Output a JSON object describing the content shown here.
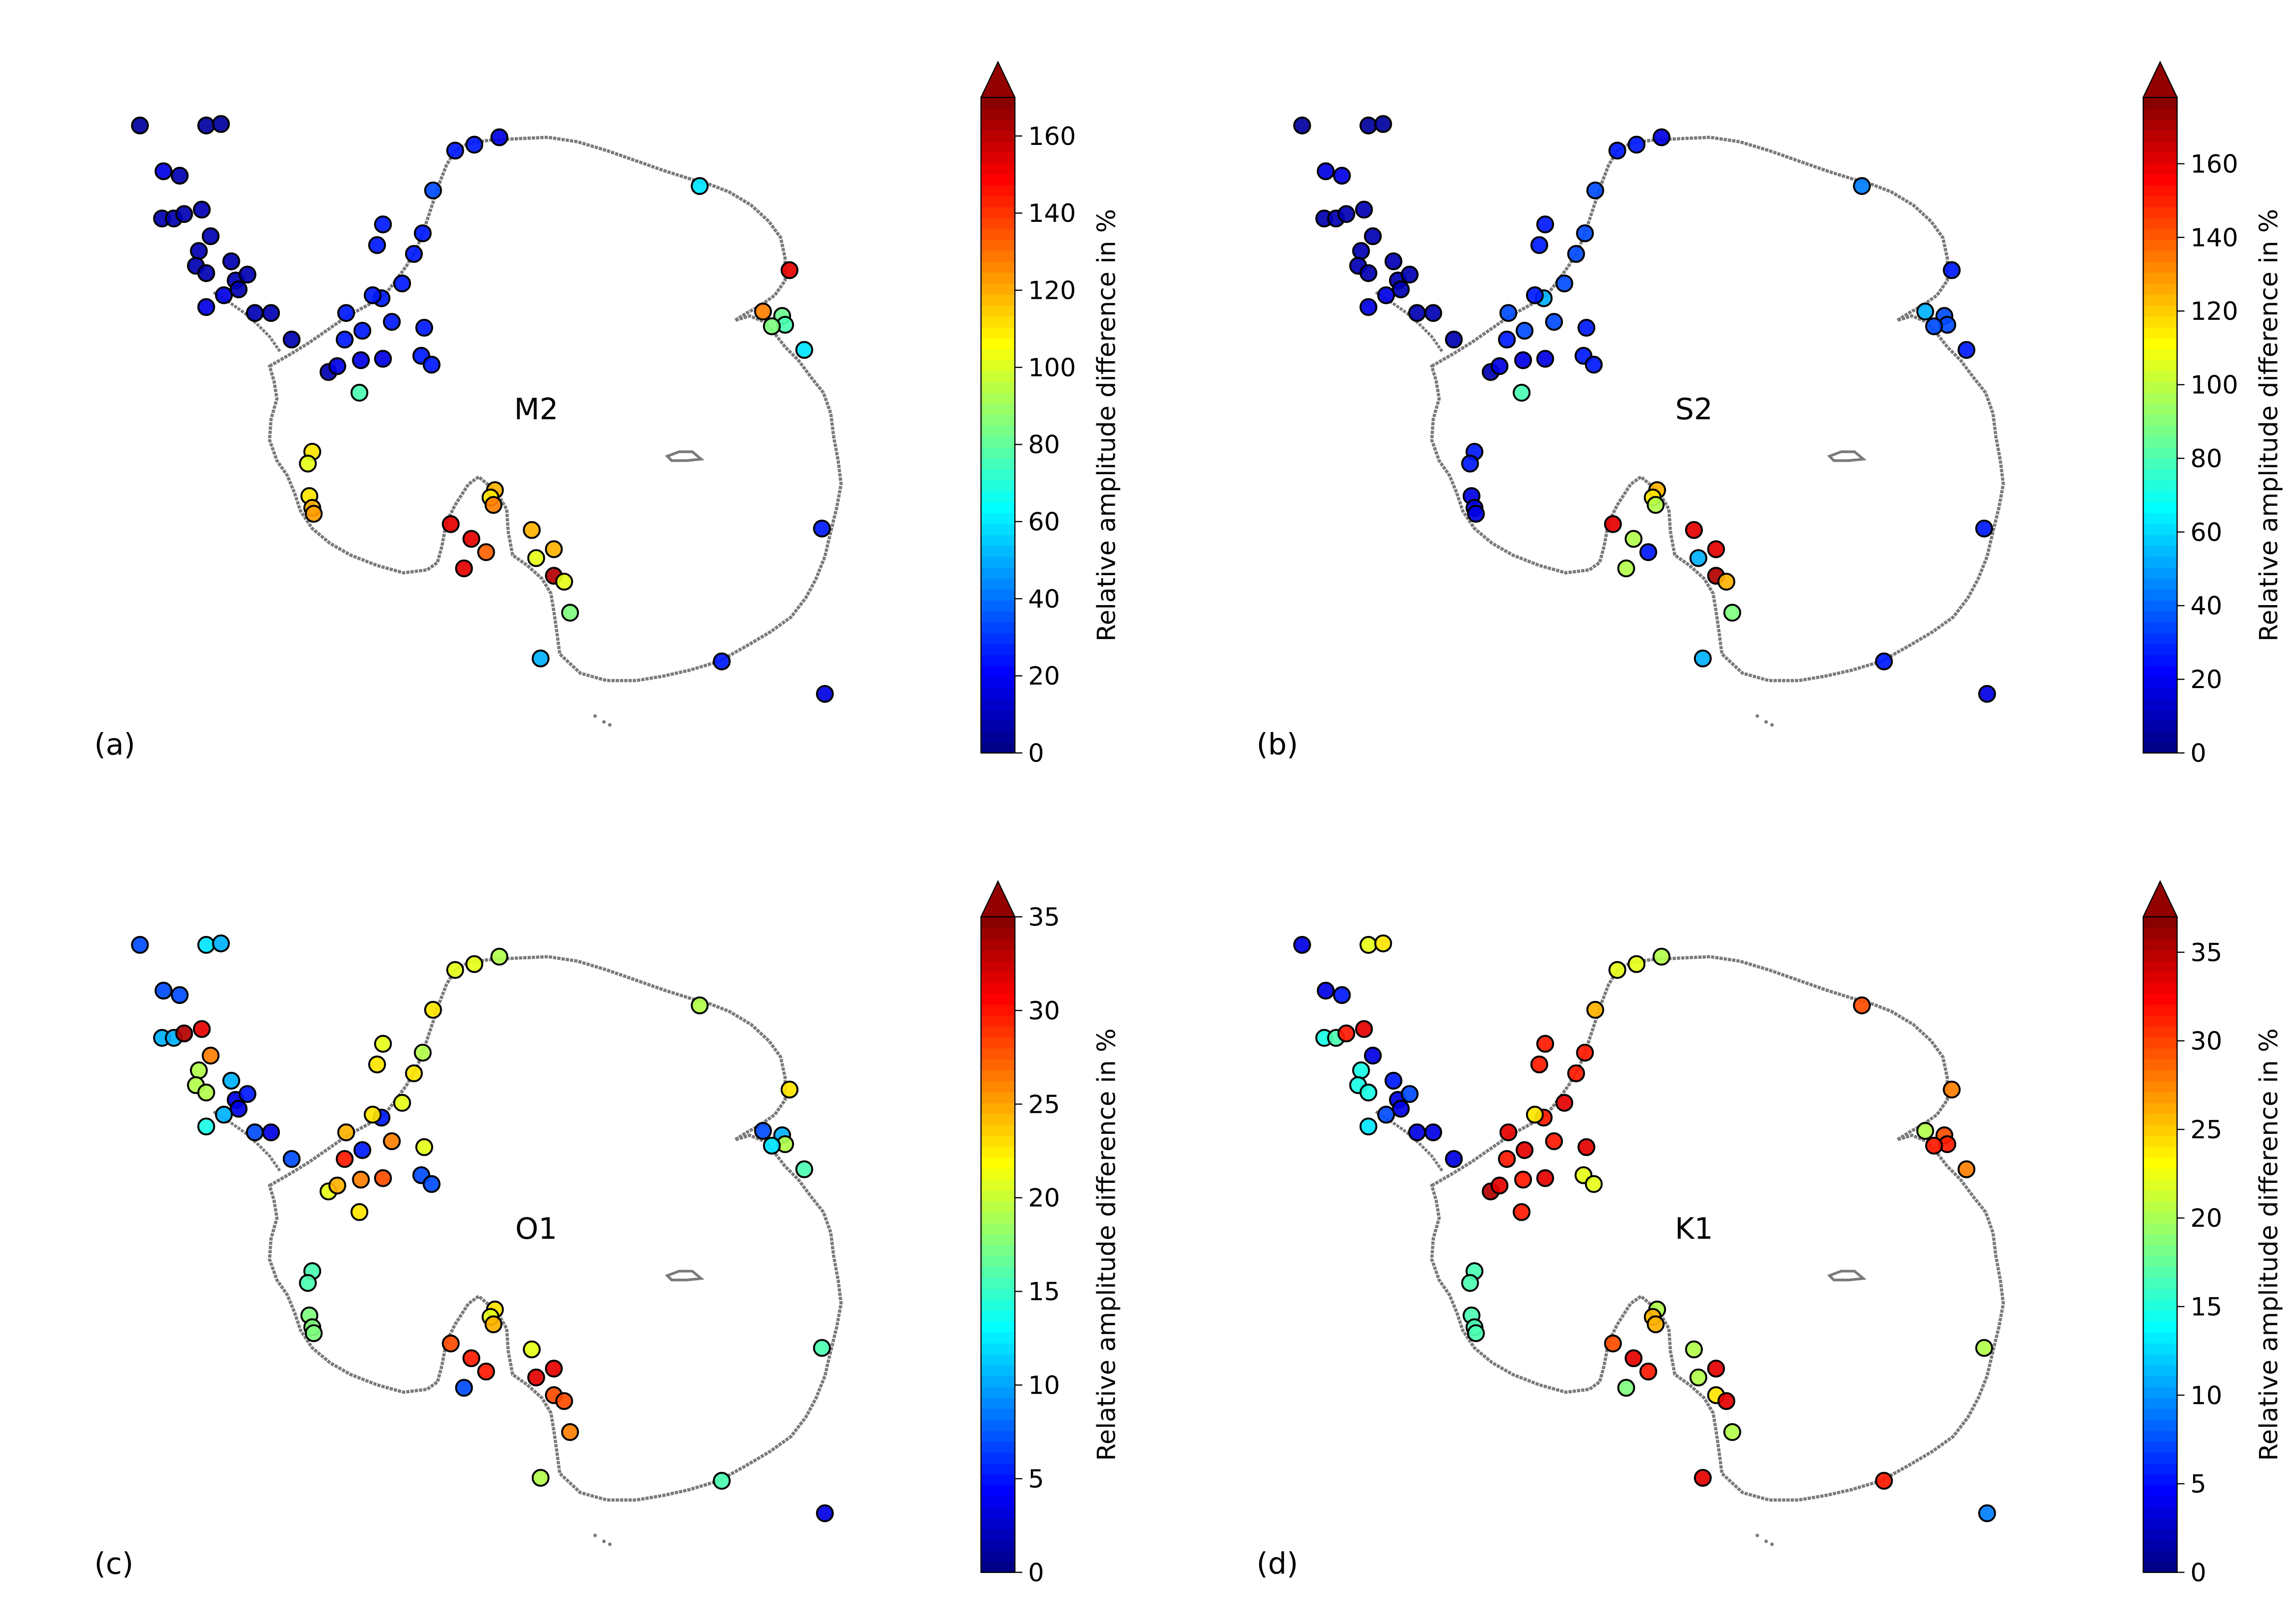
{
  "colorbar_label": "Relative amplitude difference in %",
  "colormap": [
    "#00007f",
    "#0000ff",
    "#007fff",
    "#00ffff",
    "#7fff7f",
    "#ffff00",
    "#ff7f00",
    "#ff0000",
    "#7f0000"
  ],
  "point_edge_color": "#000000",
  "coastline_color": "#7a7a7a",
  "panels": [
    {
      "panel_label": "(a)",
      "constituent": "M2",
      "cbar_ticks": [
        "0",
        "20",
        "40",
        "60",
        "80",
        "100",
        "120",
        "140",
        "160"
      ],
      "cbar_max": 170
    },
    {
      "panel_label": "(b)",
      "constituent": "S2",
      "cbar_ticks": [
        "0",
        "20",
        "40",
        "60",
        "80",
        "100",
        "120",
        "140",
        "160"
      ],
      "cbar_max": 178
    },
    {
      "panel_label": "(c)",
      "constituent": "O1",
      "cbar_ticks": [
        "0",
        "5",
        "10",
        "15",
        "20",
        "25",
        "30",
        "35"
      ],
      "cbar_max": 35
    },
    {
      "panel_label": "(d)",
      "constituent": "K1",
      "cbar_ticks": [
        "0",
        "5",
        "10",
        "15",
        "20",
        "25",
        "30",
        "35"
      ],
      "cbar_max": 37
    }
  ]
}
